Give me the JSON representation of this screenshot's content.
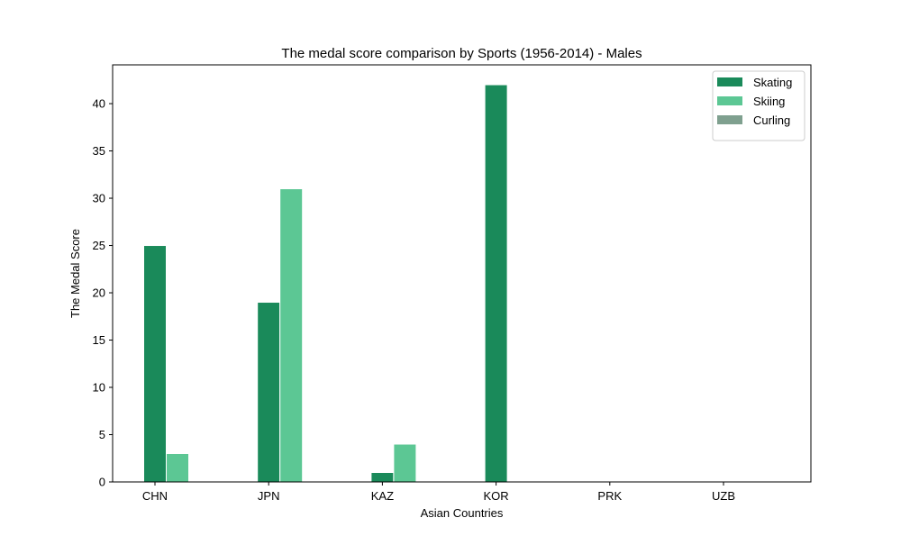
{
  "chart_data": {
    "type": "bar",
    "title": "The medal score comparison by Sports (1956-2014) - Males",
    "xlabel": "Asian Countries",
    "ylabel": "The Medal Score",
    "categories": [
      "CHN",
      "JPN",
      "KAZ",
      "KOR",
      "PRK",
      "UZB"
    ],
    "series": [
      {
        "name": "Skating",
        "color": "#1a8a5a",
        "values": [
          25,
          19,
          1,
          42,
          0,
          0
        ]
      },
      {
        "name": "Skiing",
        "color": "#5cc794",
        "values": [
          3,
          31,
          4,
          0,
          0,
          0
        ]
      },
      {
        "name": "Curling",
        "color": "#7fa08f",
        "values": [
          0,
          0,
          0,
          0,
          0,
          0
        ]
      }
    ],
    "ylim": [
      0,
      44.1
    ],
    "yticks": [
      0,
      5,
      10,
      15,
      20,
      25,
      30,
      35,
      40
    ],
    "grid": false,
    "legend_position": "top-right"
  }
}
